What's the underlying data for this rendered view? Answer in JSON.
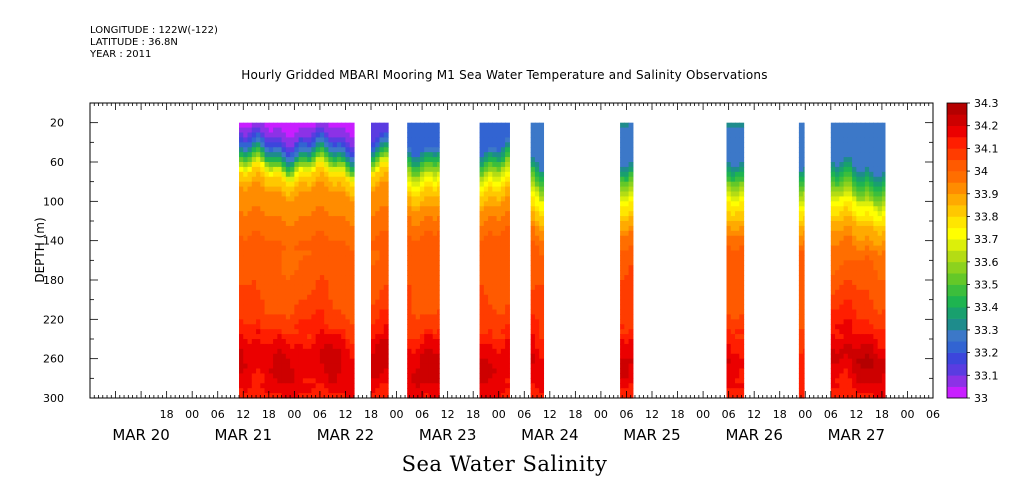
{
  "header": {
    "longitude": "LONGITUDE : 122W(-122)",
    "latitude": "LATITUDE : 36.8N",
    "year": "YEAR : 2011"
  },
  "chart_data": {
    "type": "heatmap",
    "title": "Hourly Gridded MBARI Mooring M1 Sea Water Temperature and Salinity Observations",
    "bottom_title": "Sea Water Salinity",
    "ylabel": "DEPTH (m)",
    "xlabel": "",
    "x_unit": "hours since MAR 20 00:00 (plot origin)",
    "xlim": [
      -12,
      186
    ],
    "ylim": [
      300,
      0
    ],
    "y_ticks": [
      20,
      60,
      100,
      140,
      180,
      220,
      260,
      300
    ],
    "hour_ticks": [
      {
        "h": 6,
        "label": "18"
      },
      {
        "h": 12,
        "label": "00"
      },
      {
        "h": 18,
        "label": "06"
      },
      {
        "h": 24,
        "label": "12"
      },
      {
        "h": 30,
        "label": "18"
      },
      {
        "h": 36,
        "label": "00"
      },
      {
        "h": 42,
        "label": "06"
      },
      {
        "h": 48,
        "label": "12"
      },
      {
        "h": 54,
        "label": "18"
      },
      {
        "h": 60,
        "label": "00"
      },
      {
        "h": 66,
        "label": "06"
      },
      {
        "h": 72,
        "label": "12"
      },
      {
        "h": 78,
        "label": "18"
      },
      {
        "h": 84,
        "label": "00"
      },
      {
        "h": 90,
        "label": "06"
      },
      {
        "h": 96,
        "label": "12"
      },
      {
        "h": 102,
        "label": "18"
      },
      {
        "h": 108,
        "label": "00"
      },
      {
        "h": 114,
        "label": "06"
      },
      {
        "h": 120,
        "label": "12"
      },
      {
        "h": 126,
        "label": "18"
      },
      {
        "h": 132,
        "label": "00"
      },
      {
        "h": 138,
        "label": "06"
      },
      {
        "h": 144,
        "label": "12"
      },
      {
        "h": 150,
        "label": "18"
      },
      {
        "h": 156,
        "label": "00"
      },
      {
        "h": 162,
        "label": "06"
      },
      {
        "h": 168,
        "label": "12"
      },
      {
        "h": 174,
        "label": "18"
      },
      {
        "h": 180,
        "label": "00"
      },
      {
        "h": 186,
        "label": "06"
      },
      {
        "h": 192,
        "label": "12"
      }
    ],
    "day_labels": [
      {
        "h": 0,
        "label": "MAR 20"
      },
      {
        "h": 24,
        "label": "MAR 21"
      },
      {
        "h": 48,
        "label": "MAR 22"
      },
      {
        "h": 72,
        "label": "MAR 23"
      },
      {
        "h": 96,
        "label": "MAR 24"
      },
      {
        "h": 120,
        "label": "MAR 25"
      },
      {
        "h": 144,
        "label": "MAR 26"
      },
      {
        "h": 168,
        "label": "MAR 27"
      }
    ],
    "data_segments": [
      {
        "start": 23,
        "end": 50,
        "surface": 33.02,
        "profile": "a"
      },
      {
        "start": 54,
        "end": 58,
        "surface": 33.1,
        "profile": "a"
      },
      {
        "start": 62.5,
        "end": 70,
        "surface": 33.2,
        "profile": "b"
      },
      {
        "start": 79.5,
        "end": 86.5,
        "surface": 33.2,
        "profile": "b"
      },
      {
        "start": 91.5,
        "end": 94.5,
        "surface": 33.25,
        "profile": "c"
      },
      {
        "start": 112.5,
        "end": 115.5,
        "surface": 33.3,
        "profile": "c"
      },
      {
        "start": 137.5,
        "end": 141.5,
        "surface": 33.3,
        "profile": "c"
      },
      {
        "start": 154.5,
        "end": 155.7,
        "surface": 33.25,
        "profile": "d"
      },
      {
        "start": 162,
        "end": 174.7,
        "surface": 33.25,
        "profile": "e"
      }
    ],
    "legend": {
      "placement": "right",
      "colorbar_labels": [
        "34.3",
        "34.2",
        "34.1",
        "34",
        "33.9",
        "33.8",
        "33.7",
        "33.6",
        "33.5",
        "33.4",
        "33.3",
        "33.2",
        "33.1",
        "33"
      ],
      "levels": [
        33.0,
        33.05,
        33.1,
        33.15,
        33.2,
        33.25,
        33.3,
        33.35,
        33.4,
        33.45,
        33.5,
        33.55,
        33.6,
        33.65,
        33.7,
        33.75,
        33.8,
        33.85,
        33.9,
        33.95,
        34.0,
        34.05,
        34.1,
        34.15,
        34.2,
        34.25,
        34.3
      ],
      "colors": [
        "#c81eff",
        "#8c32e6",
        "#5a3ce1",
        "#3c46dc",
        "#3264d2",
        "#3c78c8",
        "#1e8c8c",
        "#19a06e",
        "#1eb450",
        "#3cbe3c",
        "#64c828",
        "#8cd21e",
        "#b4dc14",
        "#dcef0a",
        "#ffff00",
        "#ffe600",
        "#ffc800",
        "#ffaa00",
        "#ff8c00",
        "#ff6e00",
        "#ff5a00",
        "#ff3c00",
        "#ff1e00",
        "#eb0000",
        "#cd0000",
        "#b40000"
      ]
    }
  }
}
